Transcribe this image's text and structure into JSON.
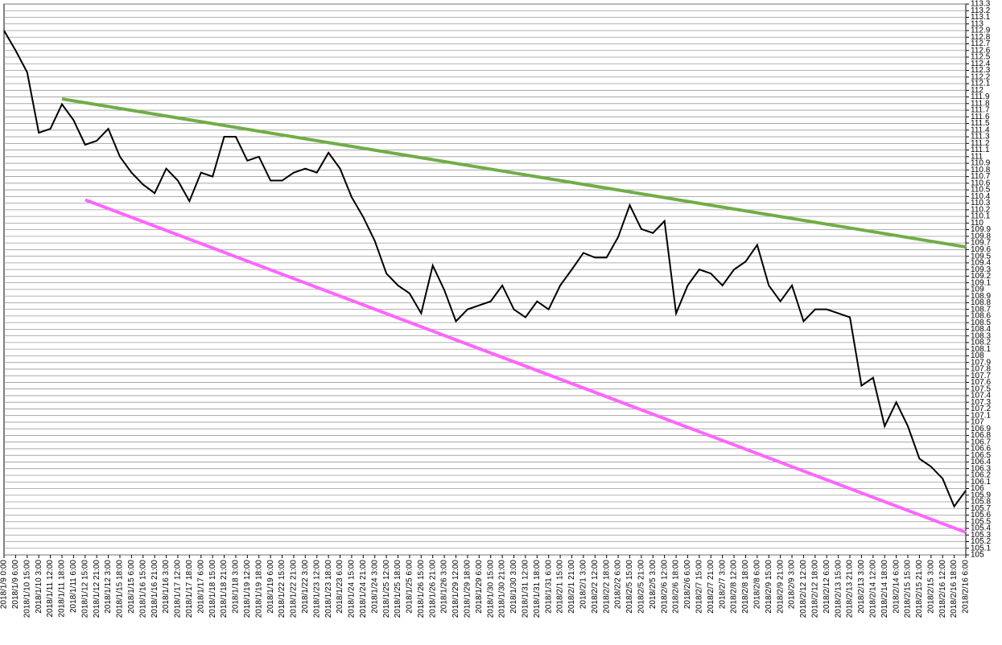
{
  "chart_data": {
    "type": "line",
    "categories": [
      "2018/1/9 0:00",
      "2018/1/9 6:00",
      "2018/1/10 15:00",
      "2018/1/10 3:00",
      "2018/1/11 12:00",
      "2018/1/11 18:00",
      "2018/1/11 6:00",
      "2018/1/12 15:00",
      "2018/1/12 21:00",
      "2018/1/12 3:00",
      "2018/1/15 18:00",
      "2018/1/15 6:00",
      "2018/1/16 15:00",
      "2018/1/16 21:00",
      "2018/1/16 3:00",
      "2018/1/17 12:00",
      "2018/1/17 18:00",
      "2018/1/17 6:00",
      "2018/1/18 15:00",
      "2018/1/18 21:00",
      "2018/1/18 3:00",
      "2018/1/19 12:00",
      "2018/1/19 18:00",
      "2018/1/19 6:00",
      "2018/1/22 15:00",
      "2018/1/22 21:00",
      "2018/1/22 3:00",
      "2018/1/23 12:00",
      "2018/1/23 18:00",
      "2018/1/23 6:00",
      "2018/1/24 15:00",
      "2018/1/24 21:00",
      "2018/1/24 3:00",
      "2018/1/25 12:00",
      "2018/1/25 18:00",
      "2018/1/25 6:00",
      "2018/1/26 15:00",
      "2018/1/26 21:00",
      "2018/1/26 3:00",
      "2018/1/29 12:00",
      "2018/1/29 18:00",
      "2018/1/29 6:00",
      "2018/1/30 15:00",
      "2018/1/30 21:00",
      "2018/1/30 3:00",
      "2018/1/31 12:00",
      "2018/1/31 18:00",
      "2018/1/31 6:00",
      "2018/2/1 15:00",
      "2018/2/1 21:00",
      "2018/2/1 3:00",
      "2018/2/2 12:00",
      "2018/2/2 18:00",
      "2018/2/2 6:00",
      "2018/2/5 15:00",
      "2018/2/5 21:00",
      "2018/2/5 3:00",
      "2018/2/6 12:00",
      "2018/2/6 18:00",
      "2018/2/6 6:00",
      "2018/2/7 15:00",
      "2018/2/7 21:00",
      "2018/2/7 3:00",
      "2018/2/8 12:00",
      "2018/2/8 18:00",
      "2018/2/8 6:00",
      "2018/2/9 15:00",
      "2018/2/9 21:00",
      "2018/2/9 3:00",
      "2018/2/12 12:00",
      "2018/2/12 18:00",
      "2018/2/12 6:00",
      "2018/2/13 15:00",
      "2018/2/13 21:00",
      "2018/2/13 3:00",
      "2018/2/14 12:00",
      "2018/2/14 18:00",
      "2018/2/14 6:00",
      "2018/2/15 15:00",
      "2018/2/15 21:00",
      "2018/2/15 3:00",
      "2018/2/16 12:00",
      "2018/2/16 18:00",
      "2018/2/16 6:00"
    ],
    "values": [
      112.9,
      112.6,
      112.27,
      111.36,
      111.42,
      111.79,
      111.55,
      111.18,
      111.24,
      111.42,
      111.0,
      110.76,
      110.58,
      110.45,
      110.82,
      110.64,
      110.33,
      110.76,
      110.7,
      111.3,
      111.3,
      110.94,
      111.0,
      110.64,
      110.64,
      110.76,
      110.82,
      110.76,
      111.06,
      110.82,
      110.39,
      110.09,
      109.73,
      109.24,
      109.06,
      108.94,
      108.64,
      109.36,
      108.99,
      108.52,
      108.7,
      108.76,
      108.82,
      109.06,
      108.7,
      108.58,
      108.82,
      108.7,
      109.06,
      109.3,
      109.55,
      109.48,
      109.48,
      109.79,
      110.27,
      109.91,
      109.85,
      110.03,
      108.64,
      109.06,
      109.3,
      109.24,
      109.06,
      109.3,
      109.42,
      109.67,
      109.06,
      108.82,
      109.06,
      108.52,
      108.7,
      108.7,
      108.64,
      108.58,
      107.55,
      107.67,
      106.94,
      107.3,
      106.94,
      106.45,
      106.33,
      106.15,
      105.73,
      105.97
    ],
    "color": "#000000",
    "trendlines": [
      {
        "color": "#70ad47",
        "points": [
          [
            5,
            111.87
          ],
          [
            83,
            109.64
          ]
        ]
      },
      {
        "color": "#ff66ff",
        "points": [
          [
            7,
            110.35
          ],
          [
            83,
            105.34
          ]
        ]
      }
    ],
    "ylim": [
      105,
      113.3
    ],
    "yticks": [
      105,
      105.1,
      105.2,
      105.3,
      105.4,
      105.5,
      105.6,
      105.7,
      105.8,
      105.9,
      106,
      106.1,
      106.2,
      106.3,
      106.4,
      106.5,
      106.6,
      106.7,
      106.8,
      106.9,
      107,
      107.1,
      107.2,
      107.3,
      107.4,
      107.5,
      107.6,
      107.7,
      107.8,
      107.9,
      108,
      108.1,
      108.2,
      108.3,
      108.4,
      108.5,
      108.6,
      108.7,
      108.8,
      108.9,
      109,
      109.1,
      109.2,
      109.3,
      109.4,
      109.5,
      109.6,
      109.7,
      109.8,
      109.9,
      110,
      110.1,
      110.2,
      110.3,
      110.4,
      110.5,
      110.6,
      110.7,
      110.8,
      110.9,
      111,
      111.1,
      111.2,
      111.3,
      111.4,
      111.5,
      111.6,
      111.7,
      111.8,
      111.9,
      112,
      112.1,
      112.2,
      112.3,
      112.4,
      112.5,
      112.6,
      112.7,
      112.8,
      112.9,
      113,
      113.1,
      113.2,
      113.3
    ],
    "grid": true
  }
}
